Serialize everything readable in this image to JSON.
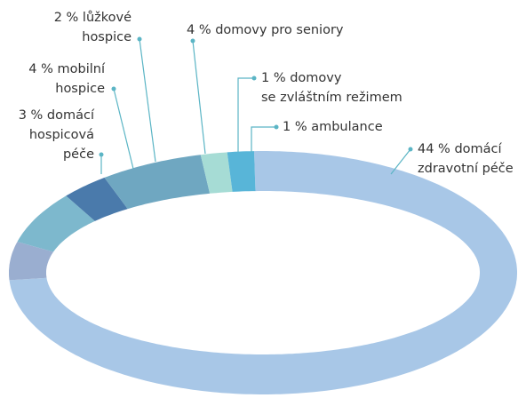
{
  "chart_data": {
    "type": "pie",
    "values": [
      44,
      3,
      4,
      2,
      4,
      1,
      1
    ],
    "labels": [
      [
        "44 % domácí",
        "zdravotní péče"
      ],
      [
        "3 % domácí",
        "hospicová",
        "péče"
      ],
      [
        "4 % mobilní",
        "hospice"
      ],
      [
        "2 % lůžkové",
        "hospice"
      ],
      [
        "4 % domovy pro seniory"
      ],
      [
        "1 % domovy",
        "se zvláštním režimem"
      ],
      [
        "1 % ambulance"
      ]
    ],
    "colors": [
      "#a8c7e7",
      "#9aaed0",
      "#7db8cd",
      "#4a7aab",
      "#6fa7c1",
      "#a6dcd5",
      "#58b5d8"
    ]
  }
}
